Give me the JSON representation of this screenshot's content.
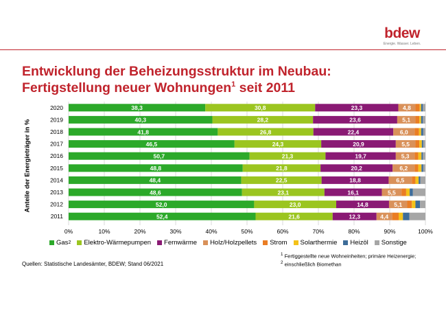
{
  "logo": {
    "word": "bdew",
    "tagline": "Energie. Wasser. Leben."
  },
  "title": {
    "line1": "Entwicklung der Beheizungsstruktur im Neubau:",
    "line2_main": "Fertigstellung neuer Wohnungen",
    "line2_sup": "1",
    "line2_end": " seit 2011"
  },
  "chart_data": {
    "type": "bar",
    "orientation": "horizontal",
    "stacked": "percent",
    "ylabel": "Anteile der Energieträger in %",
    "xlabel": "",
    "xlim": [
      0,
      100
    ],
    "x_ticks": [
      "0%",
      "10%",
      "20%",
      "30%",
      "40%",
      "50%",
      "60%",
      "70%",
      "80%",
      "90%",
      "100%"
    ],
    "categories": [
      "2020",
      "2019",
      "2018",
      "2017",
      "2016",
      "2015",
      "2014",
      "2013",
      "2012",
      "2011"
    ],
    "series": [
      {
        "name": "Gas",
        "name_sup": "2",
        "color": "#2ca92a",
        "text_color": "#ffffff",
        "values": [
          38.3,
          40.3,
          41.8,
          46.5,
          50.7,
          48.8,
          48.4,
          48.6,
          52.0,
          52.4
        ],
        "labels": [
          "38,3",
          "40,3",
          "41,8",
          "46,5",
          "50,7",
          "48,8",
          "48,4",
          "48,6",
          "52,0",
          "52,4"
        ]
      },
      {
        "name": "Elektro-Wärmepumpen",
        "color": "#9bc520",
        "text_color": "#ffffff",
        "values": [
          30.8,
          28.2,
          26.8,
          24.3,
          21.3,
          21.8,
          22.5,
          23.1,
          23.0,
          21.6
        ],
        "labels": [
          "30,8",
          "28,2",
          "26,8",
          "24,3",
          "21,3",
          "21,8",
          "22,5",
          "23,1",
          "23,0",
          "21,6"
        ]
      },
      {
        "name": "Fernwärme",
        "color": "#8a1a74",
        "text_color": "#ffffff",
        "values": [
          23.3,
          23.6,
          22.4,
          20.9,
          19.7,
          20.2,
          18.8,
          16.1,
          14.8,
          12.3
        ],
        "labels": [
          "23,3",
          "23,6",
          "22,4",
          "20,9",
          "19,7",
          "20,2",
          "18,8",
          "16,1",
          "14,8",
          "12,3"
        ]
      },
      {
        "name": "Holz/Holzpellets",
        "color": "#d9915a",
        "text_color": "#ffffff",
        "values": [
          4.8,
          5.1,
          6.0,
          5.5,
          5.3,
          6.2,
          6.5,
          5.5,
          5.1,
          4.4
        ],
        "labels": [
          "4,8",
          "5,1",
          "6,0",
          "5,5",
          "5,3",
          "6,2",
          "6,5",
          "5,5",
          "5,1",
          "4,4"
        ]
      },
      {
        "name": "Strom",
        "color": "#ea7d24",
        "text_color": "#ffffff",
        "values": [
          1.2,
          1.1,
          1.2,
          1.1,
          1.0,
          1.0,
          1.0,
          1.3,
          1.3,
          1.8
        ],
        "labels": [
          "",
          "",
          "",
          "",
          "",
          "",
          "",
          "",
          "",
          ""
        ]
      },
      {
        "name": "Solarthermie",
        "color": "#f4c21a",
        "text_color": "#ffffff",
        "values": [
          0.4,
          0.5,
          0.6,
          0.7,
          0.9,
          0.9,
          0.9,
          1.0,
          1.0,
          1.2
        ],
        "labels": [
          "",
          "",
          "",
          "",
          "",
          "",
          "",
          "",
          "",
          ""
        ]
      },
      {
        "name": "Heizöl",
        "color": "#3e6d99",
        "text_color": "#ffffff",
        "values": [
          0.5,
          0.5,
          0.6,
          0.4,
          0.4,
          0.5,
          0.5,
          0.9,
          1.3,
          1.8
        ],
        "labels": [
          "",
          "",
          "",
          "",
          "",
          "",
          "",
          "",
          "",
          ""
        ]
      },
      {
        "name": "Sonstige",
        "color": "#a6a6a6",
        "text_color": "#ffffff",
        "values": [
          0.7,
          0.7,
          0.6,
          0.6,
          0.7,
          0.6,
          1.4,
          3.5,
          1.5,
          4.5
        ],
        "labels": [
          "",
          "",
          "",
          "",
          "",
          "",
          "",
          "",
          "",
          ""
        ]
      }
    ]
  },
  "footnotes": {
    "fn1_mark": "1",
    "fn1_text": " Fertiggestellte neue  Wohneinheiten; primäre Heizenergie;",
    "fn2_mark": "2",
    "fn2_text": " einschließlich Biomethan"
  },
  "sources": "Quellen:  Statistische Landesämter, BDEW;  Stand 06/2021"
}
